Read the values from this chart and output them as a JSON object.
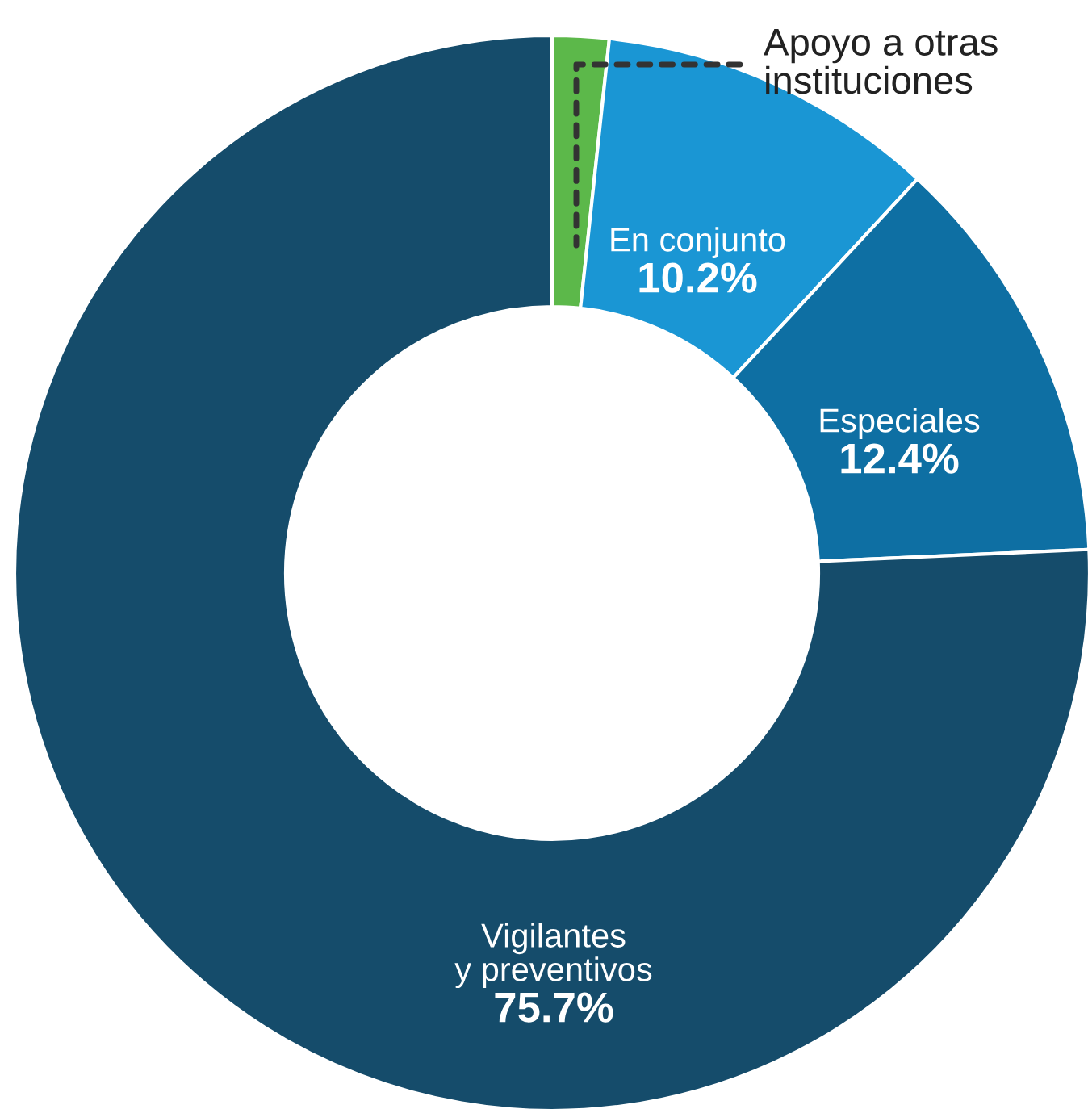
{
  "chart_data": {
    "type": "donut",
    "categories": [
      "Apoyo a otras\ninstituciones",
      "En conjunto",
      "Especiales",
      "Vigilantes\ny preventivos"
    ],
    "values": [
      1.7,
      10.2,
      12.4,
      75.7
    ],
    "value_labels": [
      null,
      "10.2%",
      "12.4%",
      "75.7%"
    ],
    "colors": [
      "#5cb84a",
      "#1a96d4",
      "#0e6fa3",
      "#154c6b"
    ],
    "legend": false
  }
}
